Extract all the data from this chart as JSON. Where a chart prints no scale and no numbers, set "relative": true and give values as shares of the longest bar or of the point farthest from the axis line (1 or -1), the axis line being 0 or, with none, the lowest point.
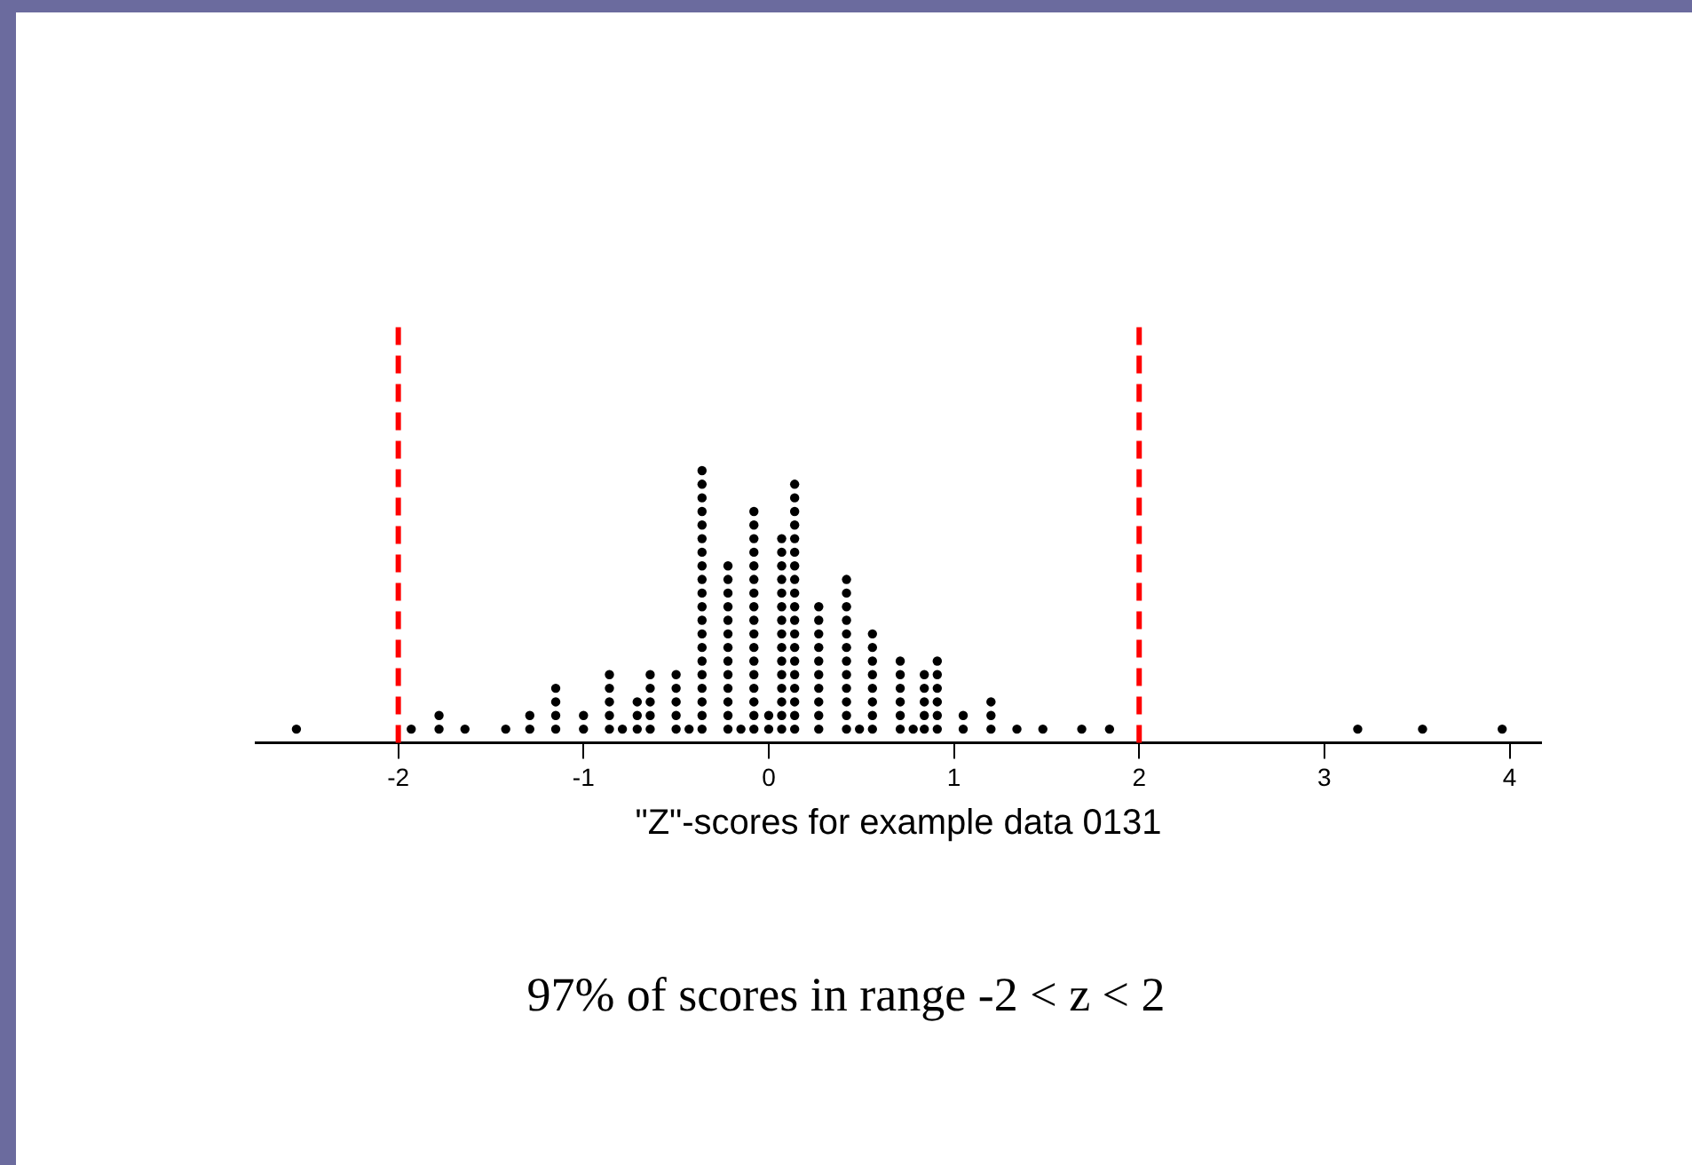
{
  "chart_data": {
    "type": "scatter",
    "relative": true,
    "xlabel": "\"Z\"-scores for example data 0131",
    "annotations": [
      "97% of scores in range -2 < z < 2"
    ],
    "xlim": [
      -2.77,
      4.17
    ],
    "xticks": [
      -2,
      -1,
      0,
      1,
      2,
      3,
      4
    ],
    "marker": "circle",
    "grid": false,
    "legend": false,
    "ref_lines": [
      {
        "axis": "x",
        "value": -2,
        "color": "#ff0000",
        "line_style": "dashed"
      },
      {
        "axis": "x",
        "value": 2,
        "color": "#ff0000",
        "line_style": "dashed"
      }
    ],
    "series": [
      {
        "color": "#000000",
        "x": [
          -2.55,
          -1.93,
          -1.78,
          -1.78,
          -1.64,
          -1.42,
          -1.29,
          -1.29,
          -1.15,
          -1.15,
          -1.15,
          -1.15,
          -1.0,
          -1.0,
          -0.86,
          -0.86,
          -0.86,
          -0.86,
          -0.86,
          -0.79,
          -0.71,
          -0.71,
          -0.71,
          -0.64,
          -0.64,
          -0.64,
          -0.64,
          -0.64,
          -0.5,
          -0.5,
          -0.5,
          -0.5,
          -0.5,
          -0.43,
          -0.36,
          -0.36,
          -0.36,
          -0.36,
          -0.36,
          -0.36,
          -0.36,
          -0.36,
          -0.36,
          -0.36,
          -0.36,
          -0.36,
          -0.36,
          -0.36,
          -0.36,
          -0.36,
          -0.36,
          -0.36,
          -0.36,
          -0.36,
          -0.22,
          -0.22,
          -0.22,
          -0.22,
          -0.22,
          -0.22,
          -0.22,
          -0.22,
          -0.22,
          -0.22,
          -0.22,
          -0.22,
          -0.22,
          -0.15,
          -0.08,
          -0.08,
          -0.08,
          -0.08,
          -0.08,
          -0.08,
          -0.08,
          -0.08,
          -0.08,
          -0.08,
          -0.08,
          -0.08,
          -0.08,
          -0.08,
          -0.08,
          -0.08,
          -0.08,
          0.0,
          0.0,
          0.07,
          0.07,
          0.07,
          0.07,
          0.07,
          0.07,
          0.07,
          0.07,
          0.07,
          0.07,
          0.07,
          0.07,
          0.07,
          0.07,
          0.07,
          0.14,
          0.14,
          0.14,
          0.14,
          0.14,
          0.14,
          0.14,
          0.14,
          0.14,
          0.14,
          0.14,
          0.14,
          0.14,
          0.14,
          0.14,
          0.14,
          0.14,
          0.14,
          0.14,
          0.27,
          0.27,
          0.27,
          0.27,
          0.27,
          0.27,
          0.27,
          0.27,
          0.27,
          0.27,
          0.42,
          0.42,
          0.42,
          0.42,
          0.42,
          0.42,
          0.42,
          0.42,
          0.42,
          0.42,
          0.42,
          0.42,
          0.49,
          0.56,
          0.56,
          0.56,
          0.56,
          0.56,
          0.56,
          0.56,
          0.56,
          0.71,
          0.71,
          0.71,
          0.71,
          0.71,
          0.71,
          0.78,
          0.84,
          0.84,
          0.84,
          0.84,
          0.84,
          0.91,
          0.91,
          0.91,
          0.91,
          0.91,
          0.91,
          1.05,
          1.05,
          1.2,
          1.2,
          1.2,
          1.34,
          1.48,
          1.69,
          1.84,
          3.18,
          3.53,
          3.96
        ],
        "values": [
          0.05,
          0.05,
          0.05,
          0.1,
          0.05,
          0.05,
          0.05,
          0.1,
          0.05,
          0.1,
          0.15,
          0.2,
          0.05,
          0.1,
          0.05,
          0.1,
          0.15,
          0.2,
          0.25,
          0.05,
          0.05,
          0.1,
          0.15,
          0.05,
          0.1,
          0.15,
          0.2,
          0.25,
          0.05,
          0.1,
          0.15,
          0.2,
          0.25,
          0.05,
          0.05,
          0.1,
          0.15,
          0.2,
          0.25,
          0.3,
          0.35,
          0.4,
          0.45,
          0.5,
          0.55,
          0.6,
          0.65,
          0.7,
          0.75,
          0.8,
          0.85,
          0.9,
          0.95,
          1,
          0.05,
          0.1,
          0.15,
          0.2,
          0.25,
          0.3,
          0.35,
          0.4,
          0.45,
          0.5,
          0.55,
          0.6,
          0.65,
          0.05,
          0.05,
          0.1,
          0.15,
          0.2,
          0.25,
          0.3,
          0.35,
          0.4,
          0.45,
          0.5,
          0.55,
          0.6,
          0.65,
          0.7,
          0.75,
          0.8,
          0.85,
          0.05,
          0.1,
          0.05,
          0.1,
          0.15,
          0.2,
          0.25,
          0.3,
          0.35,
          0.4,
          0.45,
          0.5,
          0.55,
          0.6,
          0.65,
          0.7,
          0.75,
          0.05,
          0.1,
          0.15,
          0.2,
          0.25,
          0.3,
          0.35,
          0.4,
          0.45,
          0.5,
          0.55,
          0.6,
          0.65,
          0.7,
          0.75,
          0.8,
          0.85,
          0.9,
          0.95,
          0.05,
          0.1,
          0.15,
          0.2,
          0.25,
          0.3,
          0.35,
          0.4,
          0.45,
          0.5,
          0.05,
          0.1,
          0.15,
          0.2,
          0.25,
          0.3,
          0.35,
          0.4,
          0.45,
          0.5,
          0.55,
          0.6,
          0.05,
          0.05,
          0.1,
          0.15,
          0.2,
          0.25,
          0.3,
          0.35,
          0.4,
          0.05,
          0.1,
          0.15,
          0.2,
          0.25,
          0.3,
          0.05,
          0.05,
          0.1,
          0.15,
          0.2,
          0.25,
          0.05,
          0.1,
          0.15,
          0.2,
          0.25,
          0.3,
          0.05,
          0.1,
          0.05,
          0.1,
          0.15,
          0.05,
          0.05,
          0.05,
          0.05,
          0.05,
          0.05,
          0.05
        ]
      }
    ]
  }
}
